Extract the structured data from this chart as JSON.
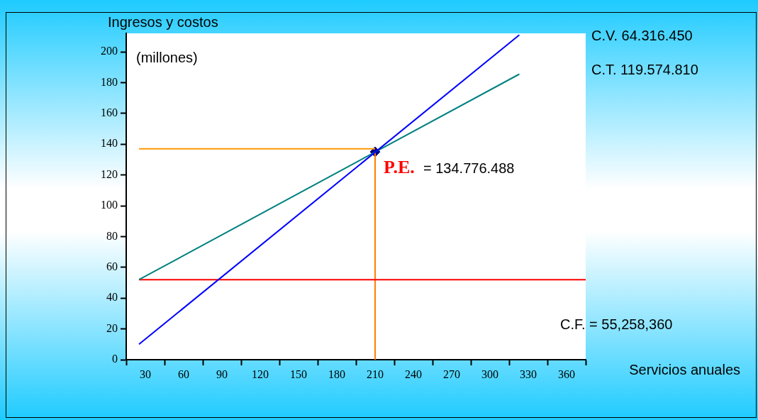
{
  "chart_data": {
    "type": "line",
    "xlabel": "Servicios anuales",
    "ylabel": "Ingresos y costos (millones)",
    "xlim": [
      15,
      375
    ],
    "xticks": [
      {
        "value": 15,
        "label": null
      },
      30,
      {
        "value": 45,
        "label": null
      },
      60,
      {
        "value": 75,
        "label": null
      },
      90,
      {
        "value": 105,
        "label": null
      },
      120,
      {
        "value": 135,
        "label": null
      },
      150,
      {
        "value": 165,
        "label": null
      },
      180,
      {
        "value": 195,
        "label": null
      },
      210,
      {
        "value": 225,
        "label": null
      },
      240,
      {
        "value": 255,
        "label": null
      },
      270,
      {
        "value": 285,
        "label": null
      },
      300,
      {
        "value": 315,
        "label": null
      },
      330,
      {
        "value": 345,
        "label": null
      },
      360,
      {
        "value": 375,
        "label": null
      }
    ],
    "ylim": [
      0,
      212
    ],
    "yticks": [
      0,
      20,
      40,
      60,
      80,
      100,
      120,
      140,
      160,
      180,
      200
    ],
    "series": [
      {
        "color": "#0000ff",
        "x": [
          25,
          323
        ],
        "values": [
          10,
          211
        ]
      },
      {
        "color": "#008080",
        "x": [
          25,
          323
        ],
        "values": [
          52,
          185.5
        ]
      },
      {
        "color": "#ff0000",
        "x": [
          25,
          375
        ],
        "values": [
          52,
          52
        ]
      },
      {
        "color": "#ff8000",
        "x": [
          210,
          210
        ],
        "values": [
          0,
          135
        ]
      },
      {
        "color": "#ff9900",
        "x": [
          25,
          210
        ],
        "values": [
          137,
          137
        ]
      },
      {
        "type": "scatter",
        "color": "#000080",
        "marker": "diamond",
        "x": [
          210
        ],
        "values": [
          135
        ]
      }
    ],
    "annotations": [
      "C.V. 64.316.450",
      "C.T. 119.574.810",
      "C.F. = 55,258,360",
      "P.E.",
      "= 134.776.488"
    ],
    "grid": false,
    "legend": false,
    "line_style": "solid"
  }
}
